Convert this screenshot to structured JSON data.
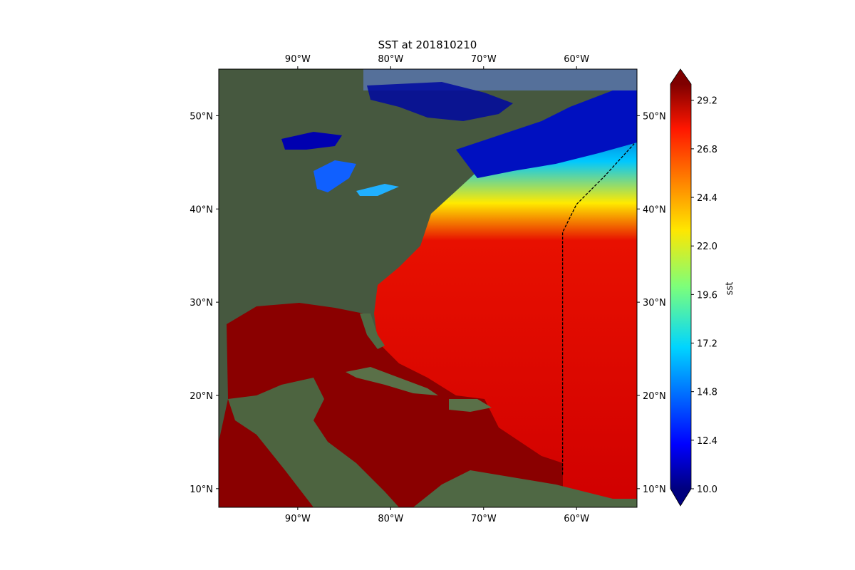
{
  "title": "SST at 201810210",
  "map": {
    "lon_range": [
      -98.5,
      -53.5
    ],
    "lat_range": [
      8,
      55
    ],
    "lon_ticks": [
      {
        "value": -90,
        "label": "90°W"
      },
      {
        "value": -80,
        "label": "80°W"
      },
      {
        "value": -70,
        "label": "70°W"
      },
      {
        "value": -60,
        "label": "60°W"
      }
    ],
    "lat_ticks": [
      {
        "value": 10,
        "label": "10°N"
      },
      {
        "value": 20,
        "label": "20°N"
      },
      {
        "value": 30,
        "label": "30°N"
      },
      {
        "value": 40,
        "label": "40°N"
      },
      {
        "value": 50,
        "label": "50°N"
      }
    ],
    "track": {
      "style": "dashed",
      "color": "#000000",
      "points": [
        [
          -61.5,
          11.5
        ],
        [
          -61.5,
          37.5
        ],
        [
          -60,
          40.5
        ],
        [
          -57,
          43.5
        ],
        [
          -53.8,
          47
        ]
      ]
    }
  },
  "colorbar": {
    "label": "sst",
    "min": 10.0,
    "max": 30.0,
    "extend": "both",
    "colormap": "jet",
    "ticks": [
      "10.0",
      "12.4",
      "14.8",
      "17.2",
      "19.6",
      "22.0",
      "24.4",
      "26.8",
      "29.2"
    ]
  }
}
